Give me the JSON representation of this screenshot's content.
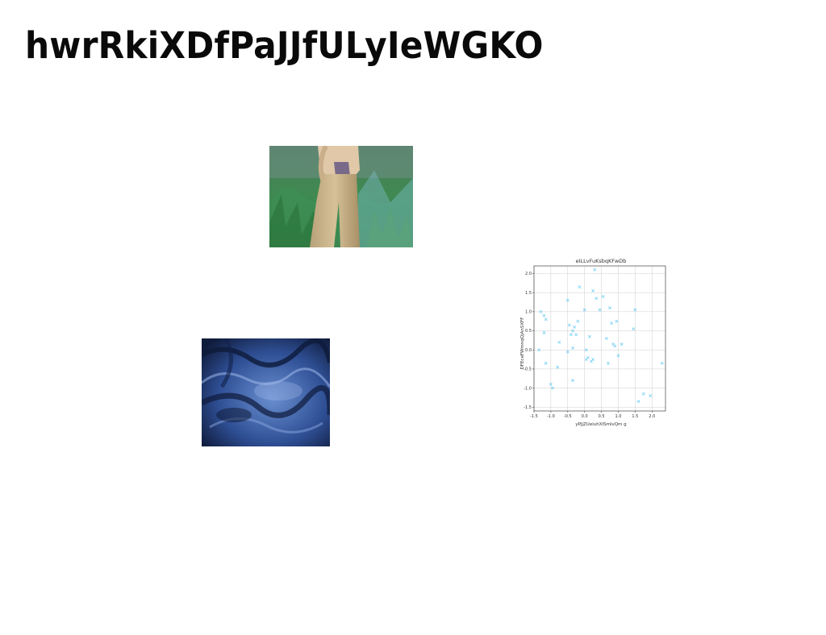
{
  "page": {
    "title": "hwrRkiXDfPaJJfULyIeWGKO"
  },
  "images": [
    {
      "subject": "person in beige pants and shirt standing in tall green grass"
    },
    {
      "subject": "blue wavy rock texture"
    }
  ],
  "chart_data": {
    "type": "scatter",
    "title": "eILLvFuKsbqKFwDb",
    "xlabel": "yPJjZUeiuhXISmlvQm g",
    "ylabel": "DFEceFWmnqQjAnSXFF",
    "xlim": [
      -1.5,
      2.4
    ],
    "ylim": [
      -1.6,
      2.2
    ],
    "xticks": [
      "-1.5",
      "-1.0",
      "-0.5",
      "0.0",
      "0.5",
      "1.0",
      "1.5",
      "2.0"
    ],
    "yticks": [
      "-1.5",
      "-1.0",
      "-0.5",
      "0.0",
      "0.5",
      "1.0",
      "1.5",
      "2.0"
    ],
    "grid": true,
    "marker": "x",
    "color": "#7fd3f5",
    "x": [
      -1.35,
      -1.2,
      -1.15,
      -1.15,
      -1.2,
      -1.0,
      -0.95,
      -0.8,
      -0.75,
      -0.5,
      -0.5,
      -0.45,
      -0.4,
      -0.35,
      -0.35,
      -0.3,
      -0.25,
      -0.2,
      -0.15,
      0.0,
      0.05,
      0.05,
      0.1,
      0.15,
      0.2,
      0.25,
      0.3,
      0.35,
      0.45,
      0.55,
      0.65,
      0.7,
      0.75,
      0.8,
      0.85,
      0.9,
      0.95,
      1.0,
      1.1,
      1.45,
      1.5,
      1.6,
      1.75,
      1.95,
      2.3,
      -1.3,
      -0.35,
      0.25
    ],
    "y": [
      0.0,
      0.9,
      0.8,
      -0.35,
      0.45,
      -0.9,
      -1.0,
      -0.45,
      0.2,
      1.3,
      -0.05,
      0.65,
      0.4,
      0.5,
      -0.8,
      0.6,
      0.4,
      0.75,
      1.65,
      1.05,
      -0.25,
      0.0,
      -0.2,
      0.35,
      -0.3,
      1.55,
      2.1,
      1.35,
      1.05,
      1.4,
      0.3,
      -0.35,
      1.1,
      0.7,
      0.15,
      0.1,
      0.75,
      -0.15,
      0.15,
      0.55,
      1.05,
      -1.35,
      -1.15,
      -1.2,
      -0.35,
      1.0,
      0.05,
      -0.25
    ]
  }
}
